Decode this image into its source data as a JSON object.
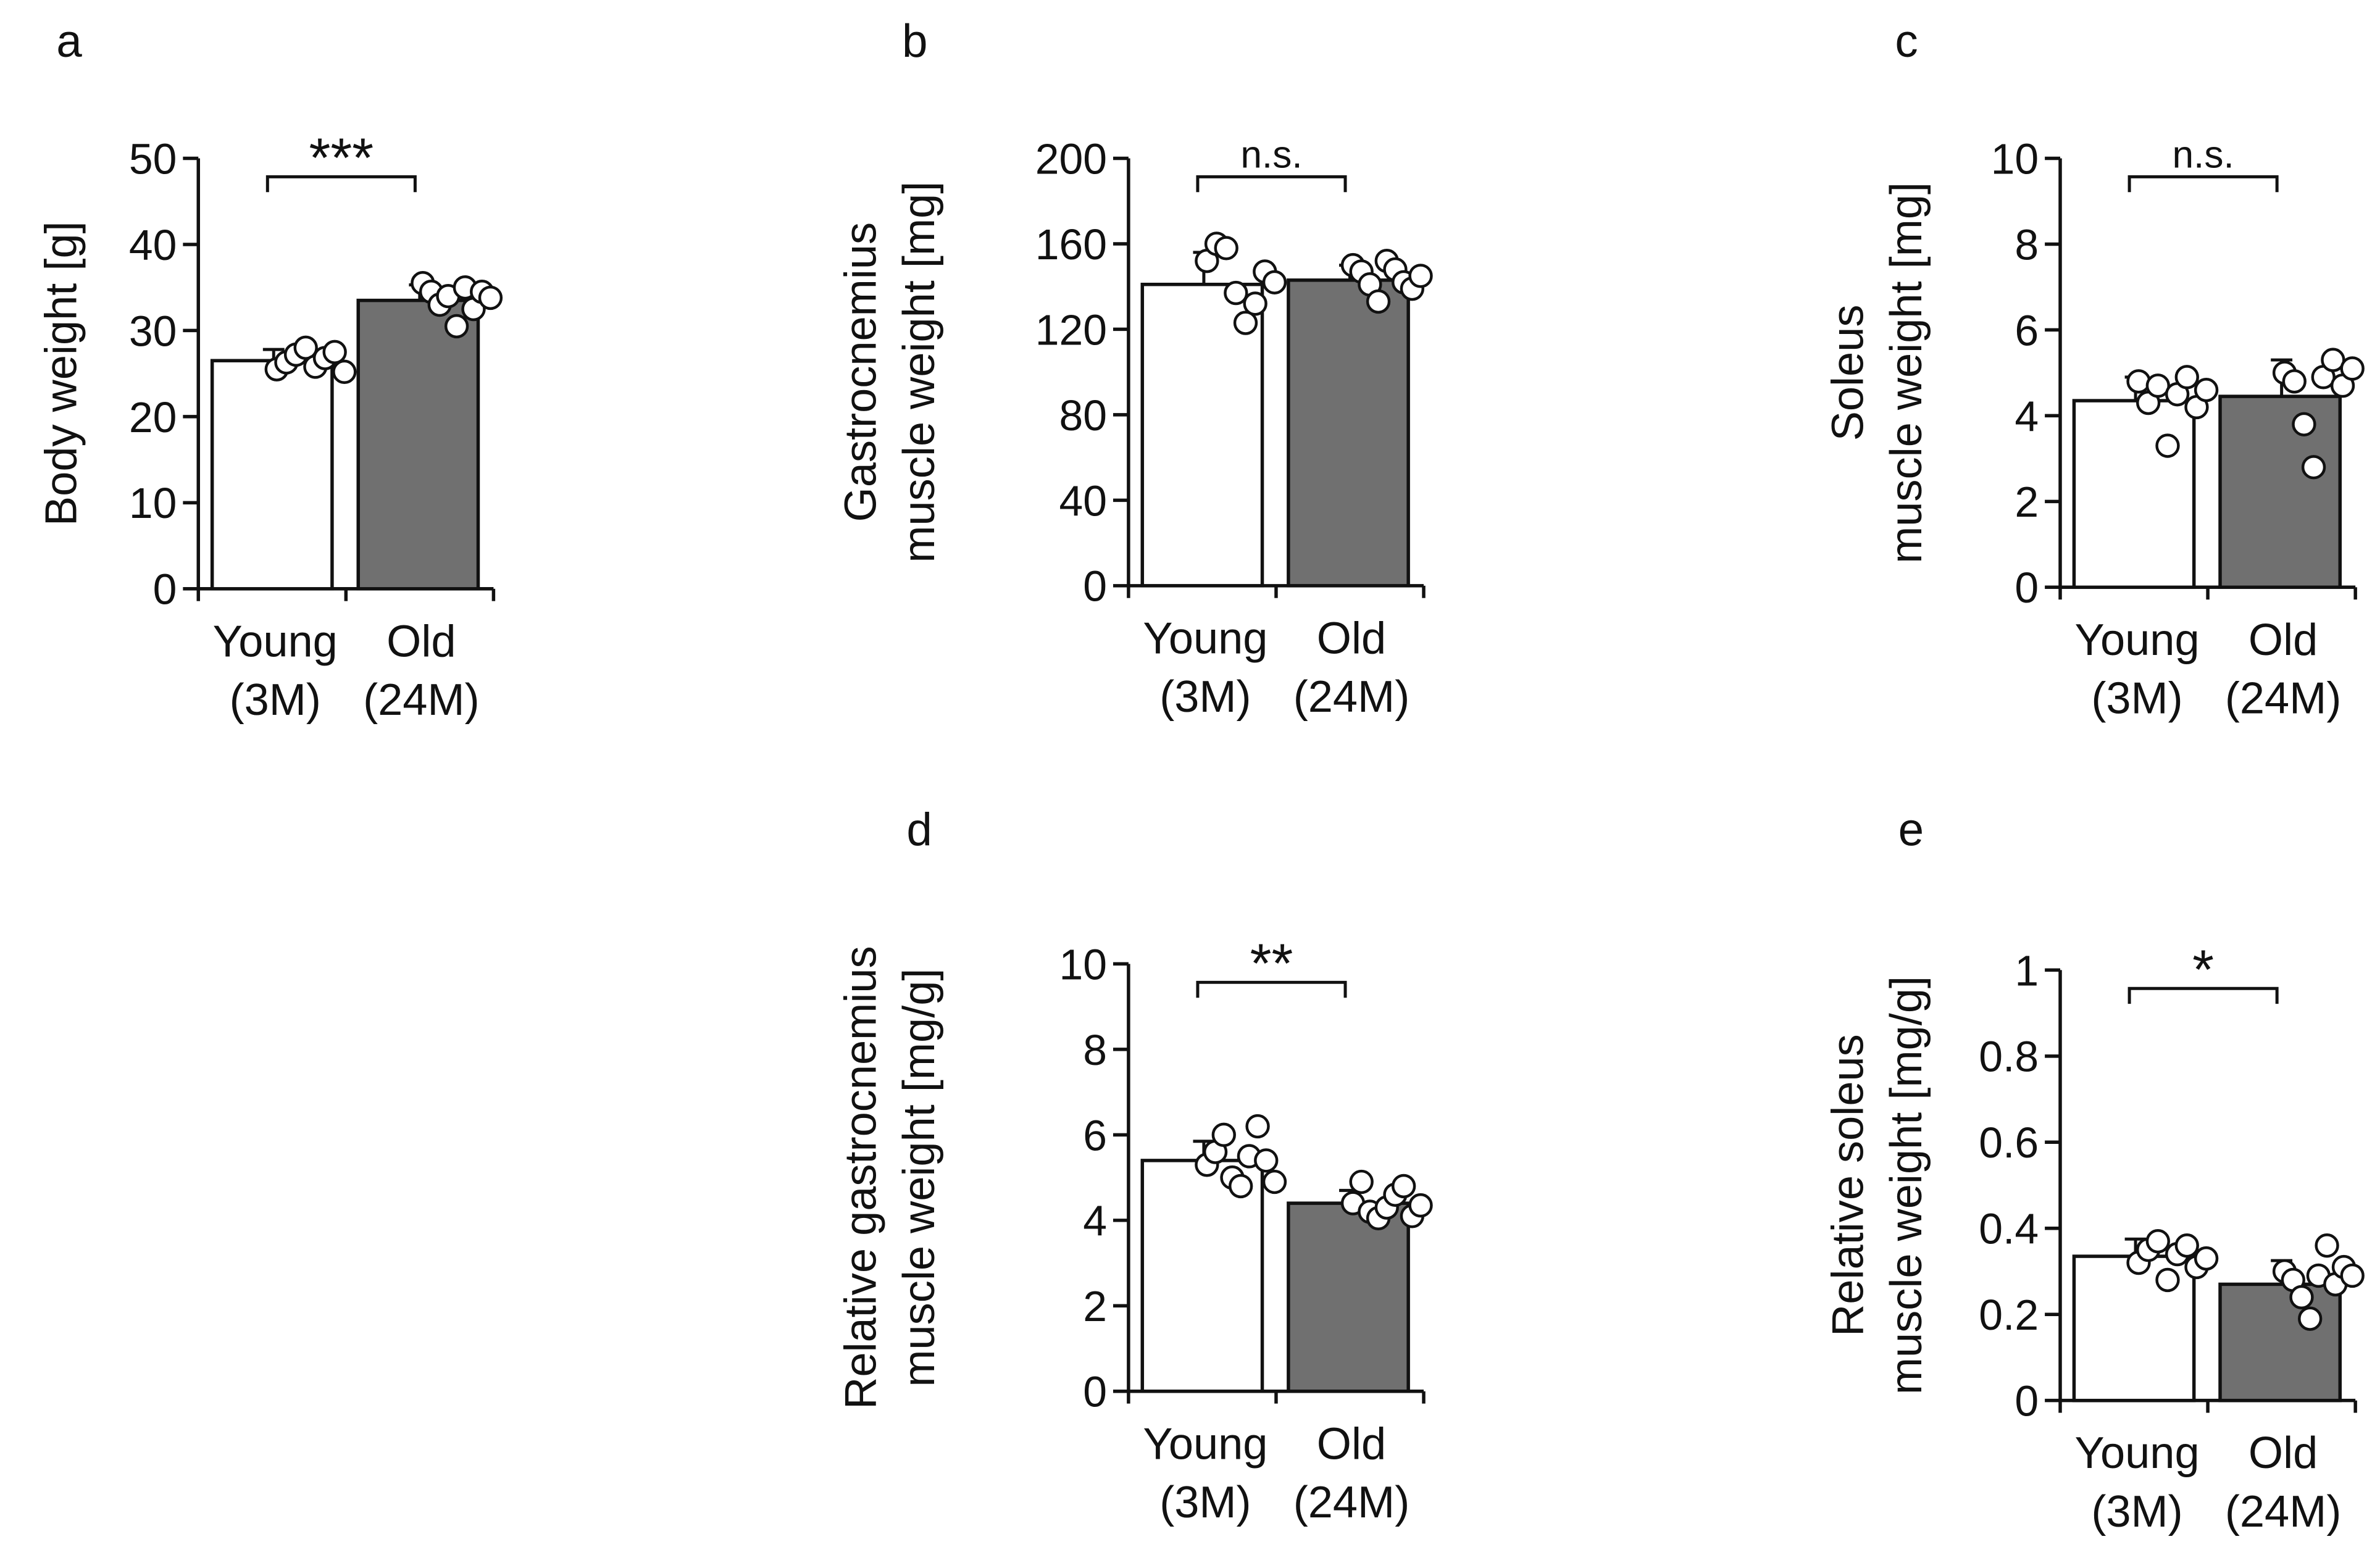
{
  "colors": {
    "young_bar": "#ffffff",
    "old_bar": "#707070",
    "axis": "#111111",
    "dot_fill": "#ffffff"
  },
  "chart_data": [
    {
      "panel": "a",
      "type": "bar",
      "ylabel_lines": [
        "Body weight [g]"
      ],
      "ylim": [
        0,
        50
      ],
      "yticks": [
        "0",
        "10",
        "20",
        "30",
        "40",
        "50"
      ],
      "ytick_values": [
        0,
        10,
        20,
        30,
        40,
        50
      ],
      "categories": [
        {
          "line1": "Young",
          "line2": "(3M)"
        },
        {
          "line1": "Old",
          "line2": "(24M)"
        }
      ],
      "values": [
        26.5,
        33.5
      ],
      "errors": [
        1.3,
        1.8
      ],
      "points": [
        [
          25.5,
          26.3,
          27.2,
          28.0,
          25.8,
          26.8,
          27.5,
          25.2
        ],
        [
          35.5,
          34.5,
          33.0,
          34.0,
          30.5,
          35.0,
          32.5,
          34.5,
          33.8
        ]
      ],
      "significance": "***"
    },
    {
      "panel": "b",
      "type": "bar",
      "ylabel_lines": [
        "Gastrocnemius",
        "muscle weight [mg]"
      ],
      "ylim": [
        0,
        200
      ],
      "yticks": [
        "0",
        "40",
        "80",
        "120",
        "160",
        "200"
      ],
      "ytick_values": [
        0,
        40,
        80,
        120,
        160,
        200
      ],
      "categories": [
        {
          "line1": "Young",
          "line2": "(3M)"
        },
        {
          "line1": "Old",
          "line2": "(24M)"
        }
      ],
      "values": [
        141,
        143
      ],
      "errors": [
        15,
        7
      ],
      "points": [
        [
          152,
          160,
          158,
          137,
          123,
          132,
          147,
          142
        ],
        [
          150,
          147,
          141,
          133,
          152,
          148,
          142,
          139,
          145
        ]
      ],
      "significance": "n.s."
    },
    {
      "panel": "c",
      "type": "bar",
      "ylabel_lines": [
        "Soleus",
        "muscle weight [mg]"
      ],
      "ylim": [
        0,
        10
      ],
      "yticks": [
        "0",
        "2",
        "4",
        "6",
        "8",
        "10"
      ],
      "ytick_values": [
        0,
        2,
        4,
        6,
        8,
        10
      ],
      "categories": [
        {
          "line1": "Young",
          "line2": "(3M)"
        },
        {
          "line1": "Old",
          "line2": "(24M)"
        }
      ],
      "values": [
        4.35,
        4.45
      ],
      "errors": [
        0.55,
        0.85
      ],
      "points": [
        [
          4.8,
          4.3,
          4.7,
          3.3,
          4.5,
          4.9,
          4.2,
          4.6
        ],
        [
          5.0,
          4.8,
          3.8,
          2.8,
          4.9,
          5.3,
          4.7,
          5.1
        ]
      ],
      "significance": "n.s."
    },
    {
      "panel": "d",
      "type": "bar",
      "ylabel_lines": [
        "Relative gastrocnemius",
        "muscle weight [mg/g]"
      ],
      "ylim": [
        0,
        10
      ],
      "yticks": [
        "0",
        "2",
        "4",
        "6",
        "8",
        "10"
      ],
      "ytick_values": [
        0,
        2,
        4,
        6,
        8,
        10
      ],
      "categories": [
        {
          "line1": "Young",
          "line2": "(3M)"
        },
        {
          "line1": "Old",
          "line2": "(24M)"
        }
      ],
      "values": [
        5.4,
        4.4
      ],
      "errors": [
        0.45,
        0.3
      ],
      "points": [
        [
          5.3,
          5.6,
          6.0,
          5.0,
          4.8,
          5.5,
          6.2,
          5.4,
          4.9
        ],
        [
          4.4,
          4.9,
          4.2,
          4.05,
          4.3,
          4.6,
          4.8,
          4.1,
          4.35
        ]
      ],
      "significance": "**"
    },
    {
      "panel": "e",
      "type": "bar",
      "ylabel_lines": [
        "Relative soleus",
        "muscle weight [mg/g]"
      ],
      "ylim": [
        0,
        1
      ],
      "yticks": [
        "0",
        "0.2",
        "0.4",
        "0.6",
        "0.8",
        "1"
      ],
      "ytick_values": [
        0,
        0.2,
        0.4,
        0.6,
        0.8,
        1
      ],
      "categories": [
        {
          "line1": "Young",
          "line2": "(3M)"
        },
        {
          "line1": "Old",
          "line2": "(24M)"
        }
      ],
      "values": [
        0.335,
        0.27
      ],
      "errors": [
        0.04,
        0.055
      ],
      "points": [
        [
          0.32,
          0.35,
          0.37,
          0.28,
          0.34,
          0.36,
          0.31,
          0.33
        ],
        [
          0.3,
          0.28,
          0.24,
          0.19,
          0.29,
          0.36,
          0.27,
          0.31,
          0.29
        ]
      ],
      "significance": "*"
    }
  ]
}
